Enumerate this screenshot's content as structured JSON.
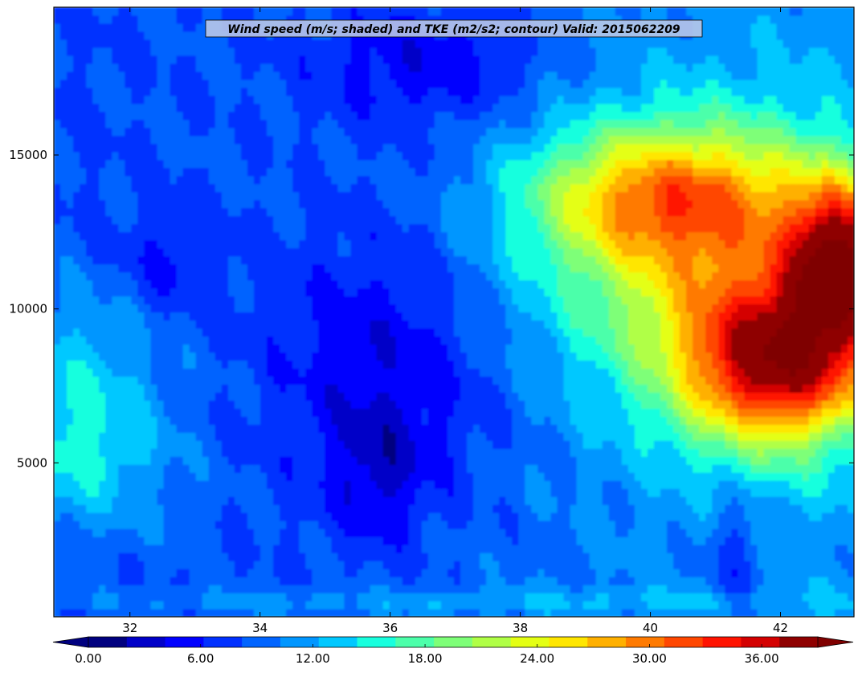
{
  "chart_data": {
    "type": "heatmap",
    "title": "Wind speed (m/s; shaded) and TKE (m2/s2; contour) Valid: 2015062209",
    "xlabel": "",
    "ylabel": "",
    "xlim": [
      30.83,
      43.13
    ],
    "ylim": [
      0,
      19800
    ],
    "x_ticks": [
      32,
      34,
      36,
      38,
      40,
      42
    ],
    "x_tick_labels": [
      "32",
      "34",
      "36",
      "38",
      "40",
      "42"
    ],
    "y_ticks": [
      5000,
      10000,
      15000
    ],
    "y_tick_labels": [
      "5000",
      "10000",
      "15000"
    ],
    "colorbar": {
      "orientation": "horizontal",
      "extend": "both",
      "min": 0,
      "max": 39,
      "step": 1.95,
      "ticks": [
        0,
        6,
        12,
        18,
        24,
        30,
        36
      ],
      "tick_labels": [
        "0.00",
        "6.00",
        "12.00",
        "18.00",
        "24.00",
        "30.00",
        "36.00"
      ],
      "under_color": "#00007f",
      "over_color": "#7f0000"
    },
    "colormap": [
      "#00007f",
      "#0000c8",
      "#0000ff",
      "#0030ff",
      "#0064ff",
      "#0096ff",
      "#00c8ff",
      "#18ffde",
      "#4cffaa",
      "#7eff78",
      "#b0ff46",
      "#e4ff13",
      "#ffe600",
      "#ffb000",
      "#ff7a00",
      "#ff4700",
      "#ff1300",
      "#d40000",
      "#8f0000"
    ],
    "wind_speed_features": [
      {
        "x": 42.9,
        "y": 11500,
        "value": 36,
        "sx": 0.55,
        "sy": 1800
      },
      {
        "x": 42.0,
        "y": 8200,
        "value": 33,
        "sx": 1.0,
        "sy": 1800
      },
      {
        "x": 41.3,
        "y": 11000,
        "value": 22,
        "sx": 1.5,
        "sy": 3500
      },
      {
        "x": 40.2,
        "y": 13700,
        "value": 23,
        "sx": 1.4,
        "sy": 1500
      },
      {
        "x": 39.3,
        "y": 12000,
        "value": 14,
        "sx": 1.5,
        "sy": 3000
      },
      {
        "x": 37.6,
        "y": 14000,
        "value": 9,
        "sx": 1.4,
        "sy": 1800
      },
      {
        "x": 40.5,
        "y": 4000,
        "value": 10,
        "sx": 0.9,
        "sy": 2200
      },
      {
        "x": 31.2,
        "y": 5200,
        "value": 14,
        "sx": 1.0,
        "sy": 1800
      },
      {
        "x": 31.1,
        "y": 8500,
        "value": 12,
        "sx": 1.0,
        "sy": 2000
      },
      {
        "x": 32.6,
        "y": 11400,
        "value": 5,
        "sx": 0.6,
        "sy": 1200
      },
      {
        "x": 35.8,
        "y": 4600,
        "value": 5,
        "sx": 0.5,
        "sy": 1500
      },
      {
        "x": 36.6,
        "y": 18000,
        "value": 4,
        "sx": 1.3,
        "sy": 1500
      },
      {
        "x": 37.0,
        "y": 500,
        "value": 12,
        "sx": 5.0,
        "sy": 300
      },
      {
        "x": 41.3,
        "y": 2000,
        "value": 6,
        "sx": 0.3,
        "sy": 1500
      }
    ]
  }
}
